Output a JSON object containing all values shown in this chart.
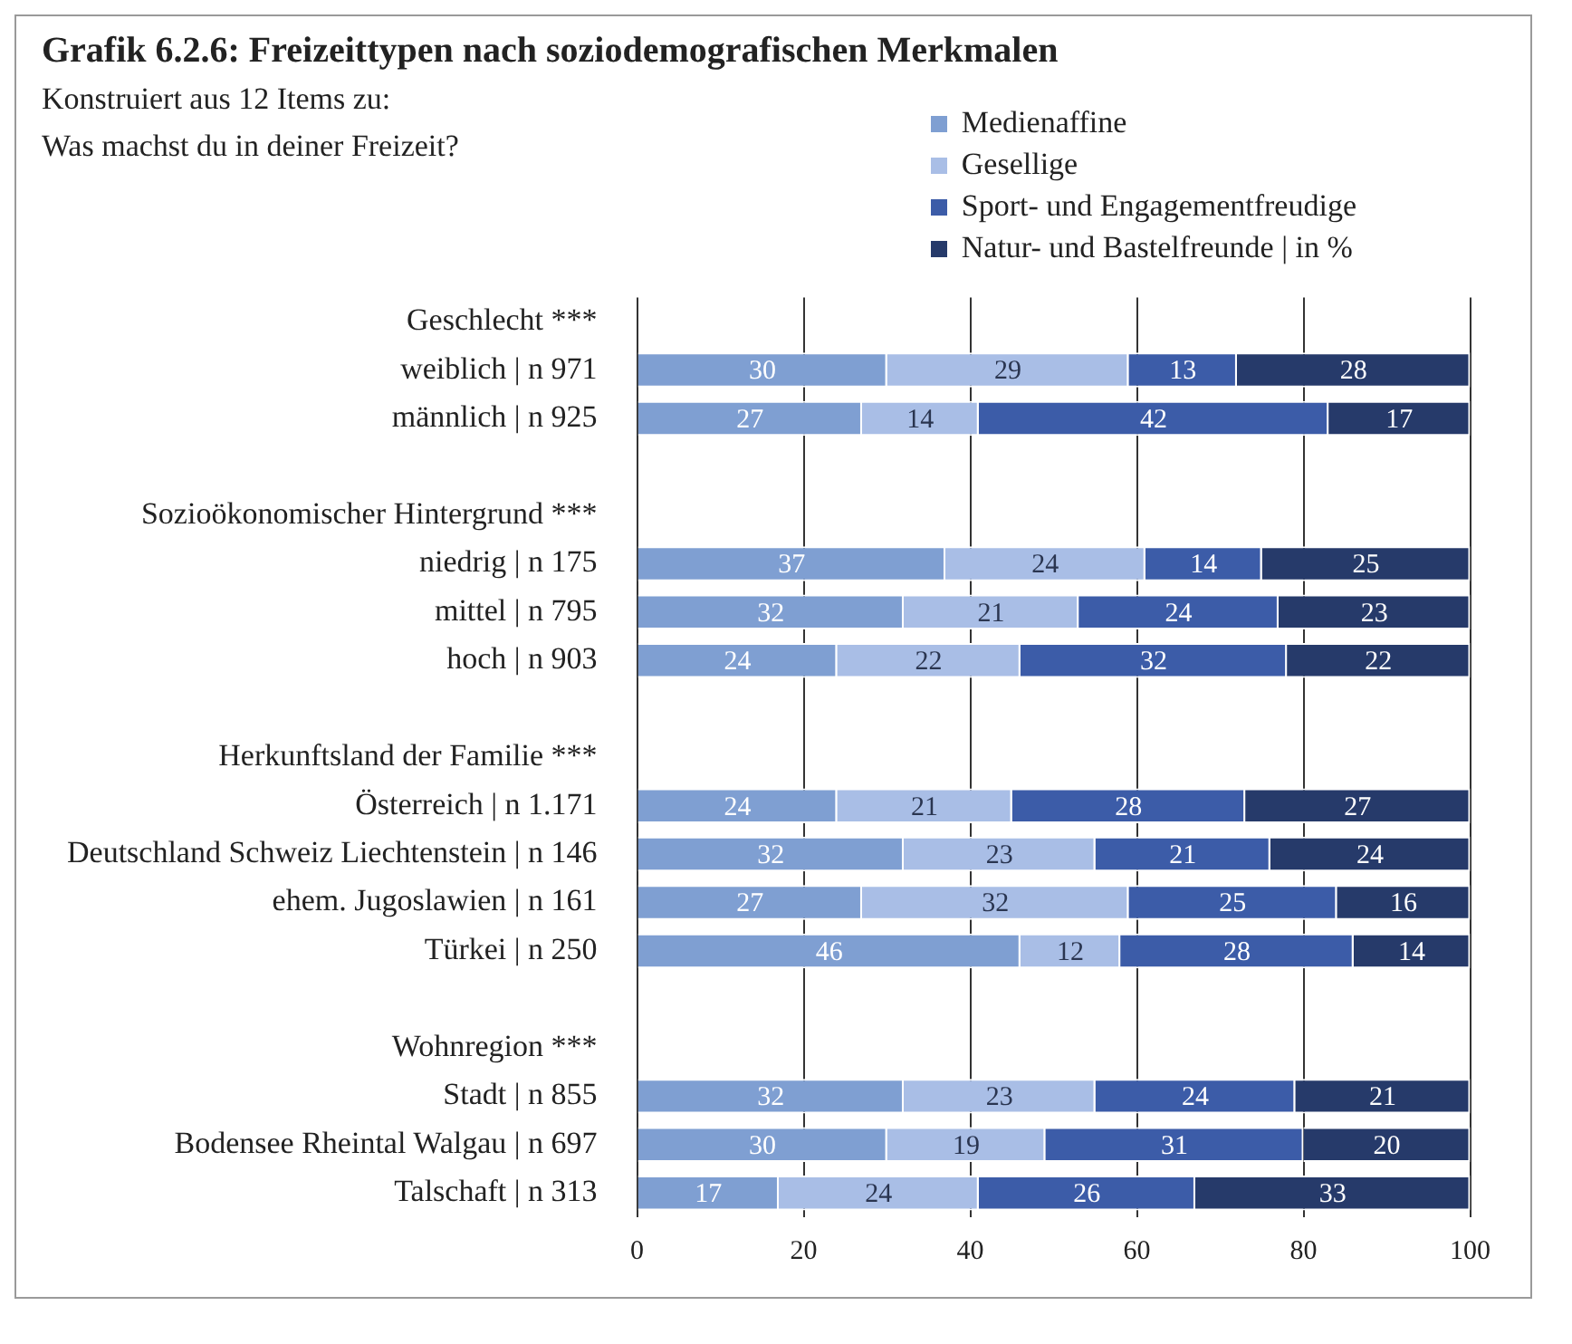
{
  "chart_data": {
    "type": "bar",
    "orientation": "horizontal",
    "stacked": true,
    "title": "Grafik 6.2.6: Freizeittypen nach soziodemografischen Merkmalen",
    "subtitle": "Konstruiert aus 12 Items zu:\nWas machst du in deiner Freizeit?",
    "categories": [
      "Geschlecht ***",
      "weiblich | n 971",
      "männlich | n 925",
      null,
      "Sozioökonomischer Hintergrund ***",
      "niedrig | n 175",
      "mittel | n 795",
      "hoch | n 903",
      null,
      "Herkunftsland der Familie ***",
      "Österreich | n 1.171",
      "Deutschland Schweiz Liechtenstein | n 146",
      "ehem. Jugoslawien | n 161",
      "Türkei | n 250",
      null,
      "Wohnregion ***",
      "Stadt | n 855",
      "Bodensee Rheintal Walgau | n 697",
      "Talschaft | n 313"
    ],
    "series": [
      {
        "name": "Medienaffine",
        "color": "#7f9fd2",
        "values": [
          null,
          30,
          27,
          null,
          null,
          37,
          32,
          24,
          null,
          null,
          24,
          32,
          27,
          46,
          null,
          null,
          32,
          30,
          17
        ]
      },
      {
        "name": "Gesellige",
        "color": "#a9bee6",
        "values": [
          null,
          29,
          14,
          null,
          null,
          24,
          21,
          22,
          null,
          null,
          21,
          23,
          32,
          12,
          null,
          null,
          23,
          19,
          24
        ]
      },
      {
        "name": "Sport- und Engagementfreudige",
        "color": "#3c5ca8",
        "values": [
          null,
          13,
          42,
          null,
          null,
          14,
          24,
          32,
          null,
          null,
          28,
          21,
          25,
          28,
          null,
          null,
          24,
          31,
          26
        ]
      },
      {
        "name": "Natur- und Bastelfreunde | in %",
        "color": "#263a6a",
        "values": [
          null,
          28,
          17,
          null,
          null,
          25,
          23,
          22,
          null,
          null,
          27,
          24,
          16,
          14,
          null,
          null,
          21,
          20,
          33
        ]
      }
    ],
    "xlim": [
      0,
      100
    ],
    "xticks": [
      0,
      20,
      40,
      60,
      80,
      100
    ],
    "grid": "x",
    "legend": "top right",
    "data_labels": true
  }
}
